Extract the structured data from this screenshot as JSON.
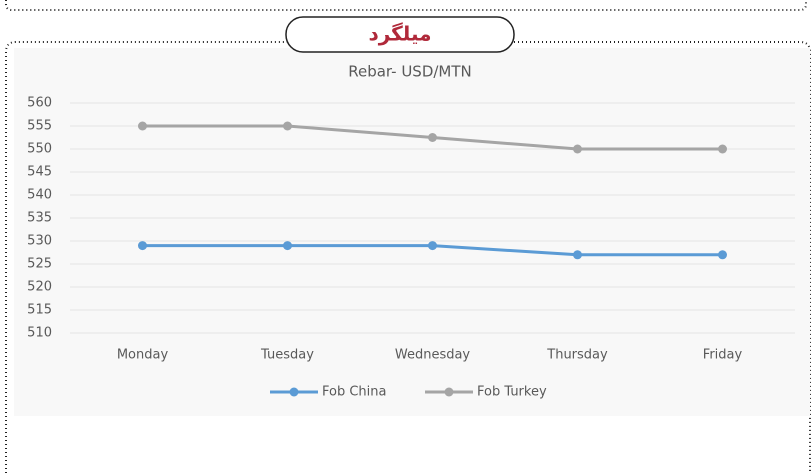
{
  "header": "میلگرد",
  "chart_data": {
    "type": "line",
    "title": "Rebar- USD/MTN",
    "categories": [
      "Monday",
      "Tuesday",
      "Wednesday",
      "Thursday",
      "Friday"
    ],
    "series": [
      {
        "name": "Fob China",
        "color": "#5b9bd5",
        "values": [
          529,
          529,
          529,
          527,
          527
        ]
      },
      {
        "name": "Fob Turkey",
        "color": "#a5a5a5",
        "values": [
          555,
          555,
          552.5,
          550,
          550
        ]
      }
    ],
    "ylim": [
      510,
      560
    ],
    "yticks": [
      510,
      515,
      520,
      525,
      530,
      535,
      540,
      545,
      550,
      555,
      560
    ],
    "grid": true,
    "legend": "bottom"
  }
}
